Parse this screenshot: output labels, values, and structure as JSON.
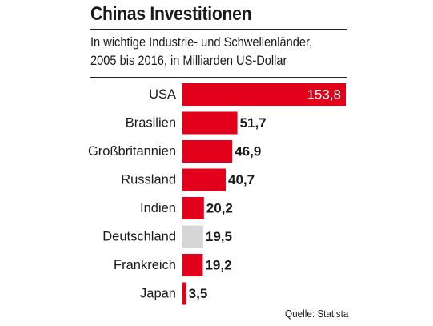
{
  "colors": {
    "bar": "#e2001a",
    "bar_highlight": "#d6d6d6",
    "text": "#1a1a1a",
    "value_inside": "#ffffff"
  },
  "chart_data": {
    "type": "bar",
    "orientation": "horizontal",
    "title": "Chinas Investitionen",
    "subtitle": "In wichtige Industrie- und Schwellenländer,",
    "subtitle_line2": "2005 bis 2016, in Milliarden US-Dollar",
    "categories": [
      "USA",
      "Brasilien",
      "Großbritannien",
      "Russland",
      "Indien",
      "Deutschland",
      "Frankreich",
      "Japan"
    ],
    "values": [
      153.8,
      51.7,
      46.9,
      40.7,
      20.2,
      19.5,
      19.2,
      3.5
    ],
    "value_labels": [
      "153,8",
      "51,7",
      "46,9",
      "40,7",
      "20,2",
      "19,5",
      "19,2",
      "3,5"
    ],
    "highlight": "Deutschland",
    "xlim": [
      0,
      153.8
    ],
    "grid": false,
    "legend": "none",
    "source": "Quelle: Statista"
  }
}
